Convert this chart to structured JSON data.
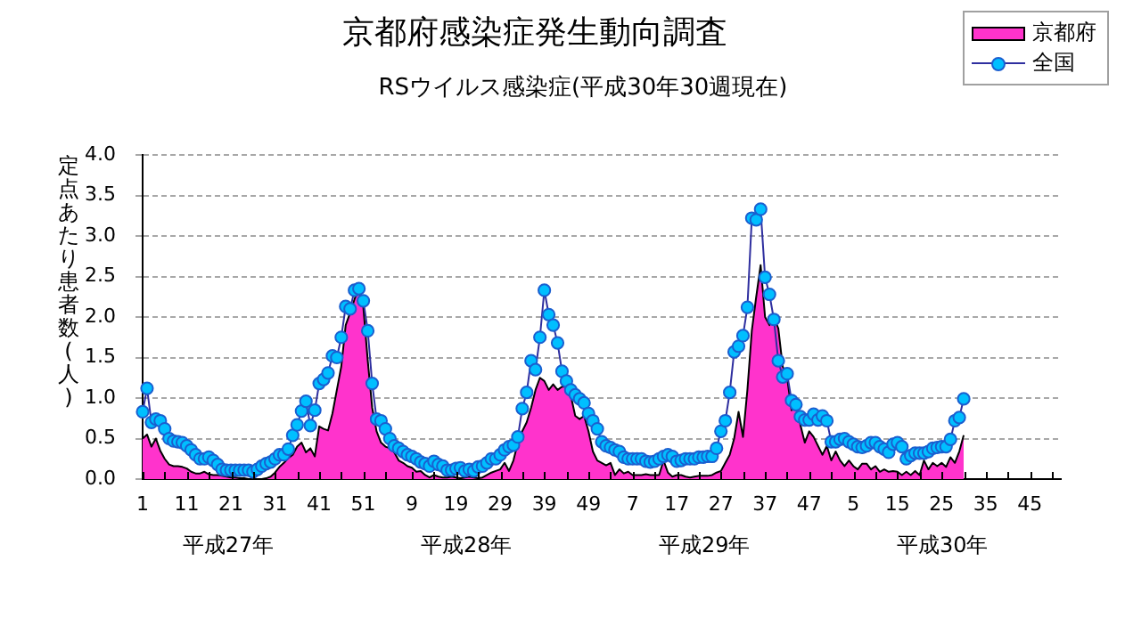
{
  "chart_data": {
    "type": "area",
    "title": "京都府感染症発生動向調査",
    "subtitle": "RSウイルス感染症(平成30年30週現在)",
    "ylabel": "定点あたり患者数(人)",
    "categories": [
      "1",
      null,
      null,
      null,
      null,
      null,
      null,
      null,
      null,
      null,
      "11",
      null,
      null,
      null,
      null,
      null,
      null,
      null,
      null,
      null,
      "21",
      null,
      null,
      null,
      null,
      null,
      null,
      null,
      null,
      null,
      "31",
      null,
      null,
      null,
      null,
      null,
      null,
      null,
      null,
      null,
      "41",
      null,
      null,
      null,
      null,
      null,
      null,
      null,
      null,
      null,
      "51",
      null,
      null,
      null,
      null,
      null,
      null,
      null,
      null,
      null,
      null,
      "9",
      null,
      null,
      null,
      null,
      null,
      null,
      null,
      null,
      null,
      "19",
      null,
      null,
      null,
      null,
      null,
      null,
      null,
      null,
      null,
      "29",
      null,
      null,
      null,
      null,
      null,
      null,
      null,
      null,
      null,
      "39",
      null,
      null,
      null,
      null,
      null,
      null,
      null,
      null,
      null,
      "49",
      null,
      null,
      null,
      null,
      null,
      null,
      null,
      null,
      null,
      "7",
      null,
      null,
      null,
      null,
      null,
      null,
      null,
      null,
      null,
      "17",
      null,
      null,
      null,
      null,
      null,
      null,
      null,
      null,
      null,
      "27",
      null,
      null,
      null,
      null,
      null,
      null,
      null,
      null,
      null,
      "37",
      null,
      null,
      null,
      null,
      null,
      null,
      null,
      null,
      null,
      "47",
      null,
      null,
      null,
      null,
      null,
      null,
      null,
      null,
      null,
      "5",
      null,
      null,
      null,
      null,
      null,
      null,
      null,
      null,
      null,
      "15",
      null,
      null,
      null,
      null,
      null,
      null,
      null,
      null,
      null,
      "25",
      null,
      null,
      null,
      null,
      null,
      null,
      null,
      null,
      null,
      "35",
      null,
      null,
      null,
      null,
      null,
      null,
      null,
      null,
      null,
      "45",
      null,
      null,
      null,
      null,
      null,
      null,
      null
    ],
    "series": [
      {
        "name": "京都府",
        "type": "area",
        "color": "#ff33cc",
        "values": [
          0.5,
          0.55,
          0.4,
          0.5,
          0.35,
          0.25,
          0.18,
          0.16,
          0.16,
          0.15,
          0.13,
          0.09,
          0.07,
          0.07,
          0.09,
          0.06,
          0.05,
          0.05,
          0.04,
          0.03,
          0.02,
          0.02,
          0.01,
          0.01,
          0.0,
          0.0,
          0.0,
          0.0,
          0.01,
          0.03,
          0.08,
          0.15,
          0.2,
          0.26,
          0.3,
          0.4,
          0.45,
          0.33,
          0.38,
          0.28,
          0.65,
          0.62,
          0.6,
          0.81,
          1.1,
          1.39,
          1.9,
          2.05,
          2.22,
          2.35,
          2.12,
          1.46,
          0.88,
          0.59,
          0.45,
          0.4,
          0.38,
          0.33,
          0.23,
          0.2,
          0.16,
          0.14,
          0.09,
          0.1,
          0.05,
          0.02,
          0.05,
          0.03,
          0.02,
          0.02,
          0.03,
          0.02,
          0.01,
          0.02,
          0.03,
          0.02,
          0.01,
          0.02,
          0.05,
          0.08,
          0.1,
          0.12,
          0.2,
          0.1,
          0.23,
          0.45,
          0.59,
          0.7,
          0.88,
          1.1,
          1.25,
          1.21,
          1.1,
          1.17,
          1.1,
          1.14,
          1.14,
          1.03,
          0.78,
          0.74,
          0.78,
          0.59,
          0.34,
          0.23,
          0.2,
          0.17,
          0.2,
          0.05,
          0.12,
          0.07,
          0.09,
          0.05,
          0.05,
          0.05,
          0.06,
          0.05,
          0.05,
          0.05,
          0.23,
          0.08,
          0.03,
          0.05,
          0.05,
          0.03,
          0.02,
          0.03,
          0.04,
          0.04,
          0.04,
          0.05,
          0.08,
          0.1,
          0.2,
          0.3,
          0.5,
          0.83,
          0.52,
          1.1,
          1.83,
          2.25,
          2.64,
          2.0,
          1.9,
          2.0,
          1.86,
          1.39,
          1.25,
          0.85,
          0.96,
          0.67,
          0.45,
          0.59,
          0.52,
          0.41,
          0.3,
          0.41,
          0.23,
          0.34,
          0.23,
          0.16,
          0.23,
          0.16,
          0.12,
          0.19,
          0.19,
          0.12,
          0.16,
          0.09,
          0.12,
          0.09,
          0.1,
          0.09,
          0.05,
          0.09,
          0.05,
          0.1,
          0.05,
          0.23,
          0.12,
          0.2,
          0.16,
          0.2,
          0.15,
          0.27,
          0.2,
          0.34,
          0.54,
          null,
          null,
          null,
          null,
          null,
          null,
          null,
          null,
          null,
          null,
          null,
          null,
          null,
          null,
          null,
          null,
          null,
          null,
          null,
          null,
          null,
          null
        ]
      },
      {
        "name": "全国",
        "type": "line",
        "color": "#00bfff",
        "marker": "circle",
        "values": [
          0.83,
          1.12,
          0.7,
          0.74,
          0.72,
          0.62,
          0.5,
          0.47,
          0.46,
          0.45,
          0.41,
          0.36,
          0.3,
          0.25,
          0.25,
          0.27,
          0.23,
          0.18,
          0.12,
          0.11,
          0.11,
          0.11,
          0.11,
          0.11,
          0.11,
          0.09,
          0.12,
          0.16,
          0.19,
          0.21,
          0.25,
          0.3,
          0.3,
          0.37,
          0.54,
          0.67,
          0.84,
          0.96,
          0.66,
          0.85,
          1.18,
          1.23,
          1.31,
          1.52,
          1.5,
          1.75,
          2.13,
          2.1,
          2.33,
          2.35,
          2.2,
          1.83,
          1.18,
          0.74,
          0.72,
          0.62,
          0.5,
          0.41,
          0.38,
          0.34,
          0.3,
          0.28,
          0.25,
          0.21,
          0.19,
          0.16,
          0.22,
          0.18,
          0.16,
          0.11,
          0.11,
          0.13,
          0.14,
          0.1,
          0.12,
          0.1,
          0.15,
          0.16,
          0.2,
          0.25,
          0.25,
          0.3,
          0.36,
          0.4,
          0.42,
          0.52,
          0.87,
          1.07,
          1.46,
          1.35,
          1.75,
          2.33,
          2.03,
          1.9,
          1.68,
          1.33,
          1.21,
          1.1,
          1.04,
          0.99,
          0.94,
          0.81,
          0.72,
          0.62,
          0.46,
          0.41,
          0.39,
          0.36,
          0.34,
          0.27,
          0.25,
          0.25,
          0.25,
          0.25,
          0.22,
          0.21,
          0.22,
          0.25,
          0.28,
          0.3,
          0.28,
          0.22,
          0.23,
          0.25,
          0.25,
          0.25,
          0.27,
          0.27,
          0.28,
          0.28,
          0.38,
          0.59,
          0.72,
          1.07,
          1.57,
          1.64,
          1.77,
          2.12,
          3.22,
          3.2,
          3.33,
          2.49,
          2.28,
          1.97,
          1.46,
          1.26,
          1.3,
          0.97,
          0.92,
          0.77,
          0.73,
          0.73,
          0.8,
          0.73,
          0.78,
          0.72,
          0.46,
          0.46,
          0.49,
          0.5,
          0.46,
          0.43,
          0.4,
          0.39,
          0.41,
          0.45,
          0.45,
          0.4,
          0.37,
          0.33,
          0.43,
          0.45,
          0.4,
          0.25,
          0.29,
          0.32,
          0.32,
          0.32,
          0.34,
          0.38,
          0.39,
          0.4,
          0.4,
          0.49,
          0.72,
          0.76,
          0.99,
          null,
          null,
          null,
          null,
          null,
          null,
          null,
          null,
          null,
          null,
          null,
          null,
          null,
          null,
          null,
          null,
          null,
          null,
          null,
          null,
          null,
          null
        ]
      }
    ],
    "ylim": [
      0,
      4
    ],
    "yticks": [
      {
        "value": 0,
        "label": "0.0"
      },
      0.5,
      {
        "value": 1,
        "label": "1.0"
      },
      1.5,
      {
        "value": 2,
        "label": "2.0"
      },
      2.5,
      {
        "value": 3,
        "label": "3.0"
      },
      3.5,
      {
        "value": 4,
        "label": "4.0"
      }
    ],
    "grid": "y",
    "legend": "top right",
    "annotations": [
      "平成27年",
      "平成28年",
      "平成29年",
      "平成30年"
    ]
  }
}
